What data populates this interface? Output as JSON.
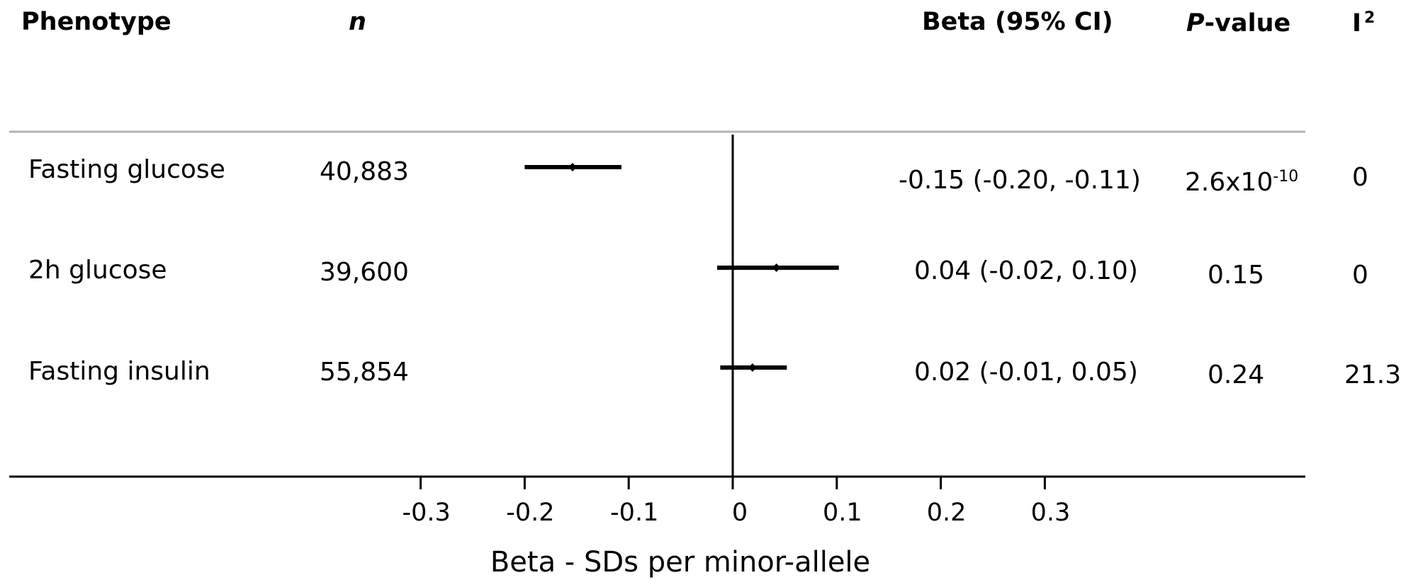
{
  "headers": {
    "phenotype": "Phenotype",
    "n": "n",
    "beta_ci": "Beta (95% CI)",
    "p_italic": "P",
    "p_rest": "-value",
    "i2_base": "I",
    "i2_sup": "2"
  },
  "rows": [
    {
      "phenotype": "Fasting glucose",
      "n": "40,883",
      "beta_ci": "-0.15 (-0.20, -0.11)",
      "p_base": "2.6x10",
      "p_exp": "-10",
      "i2": "0"
    },
    {
      "phenotype": "2h glucose",
      "n": "39,600",
      "beta_ci": "0.04 (-0.02, 0.10)",
      "p_base": "0.15",
      "p_exp": "",
      "i2": "0"
    },
    {
      "phenotype": "Fasting insulin",
      "n": "55,854",
      "beta_ci": "0.02 (-0.01, 0.05)",
      "p_base": "0.24",
      "p_exp": "",
      "i2": "21.3"
    }
  ],
  "chart_data": {
    "type": "forest",
    "xlabel": "Beta - SDs per minor-allele",
    "xlim": [
      -0.35,
      0.35
    ],
    "xticks": [
      -0.3,
      -0.2,
      -0.1,
      0,
      0.1,
      0.2,
      0.3
    ],
    "xtick_labels": [
      "-0.3",
      "-0.2",
      "-0.1",
      "0",
      "0.1",
      "0.2",
      "0.3"
    ],
    "reference_line": 0,
    "series": [
      {
        "category": "Fasting glucose",
        "beta": -0.154,
        "ci_low": -0.2,
        "ci_high": -0.107
      },
      {
        "category": "2h glucose",
        "beta": 0.042,
        "ci_low": -0.015,
        "ci_high": 0.102
      },
      {
        "category": "Fasting insulin",
        "beta": 0.019,
        "ci_low": -0.012,
        "ci_high": 0.052
      }
    ],
    "colors": {
      "marks": "#000000",
      "header_rule": "#b3b3b3"
    }
  }
}
